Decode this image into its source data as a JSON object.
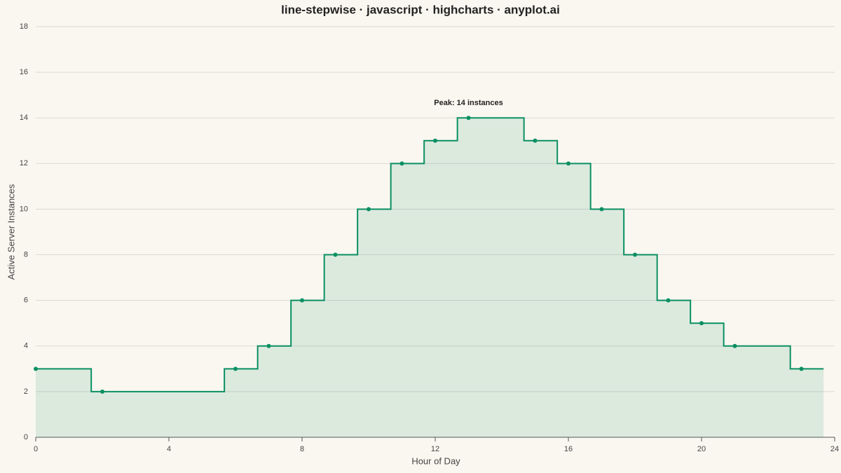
{
  "chart_data": {
    "type": "line-step",
    "title": "line-stepwise · javascript · highcharts · anyplot.ai",
    "x_label": "Hour of Day",
    "y_label": "Active Server Instances",
    "annotation": "Peak: 14 instances",
    "x": [
      0,
      1,
      2,
      3,
      4,
      5,
      6,
      7,
      8,
      9,
      10,
      11,
      12,
      13,
      14,
      15,
      16,
      17,
      18,
      19,
      20,
      21,
      22,
      23
    ],
    "series": [
      {
        "color": "#0a8f63",
        "values": [
          3,
          3,
          2,
          2,
          2,
          2,
          3,
          4,
          6,
          8,
          10,
          12,
          13,
          14,
          14,
          13,
          12,
          10,
          8,
          6,
          5,
          4,
          4,
          3
        ]
      }
    ],
    "xlim": [
      0,
      24
    ],
    "xticks": [
      0,
      4,
      8,
      12,
      16,
      20,
      24
    ],
    "ylim": [
      0,
      18
    ],
    "yticks": [
      0,
      2,
      4,
      6,
      8,
      10,
      12,
      14,
      16,
      18
    ],
    "grid": true
  }
}
